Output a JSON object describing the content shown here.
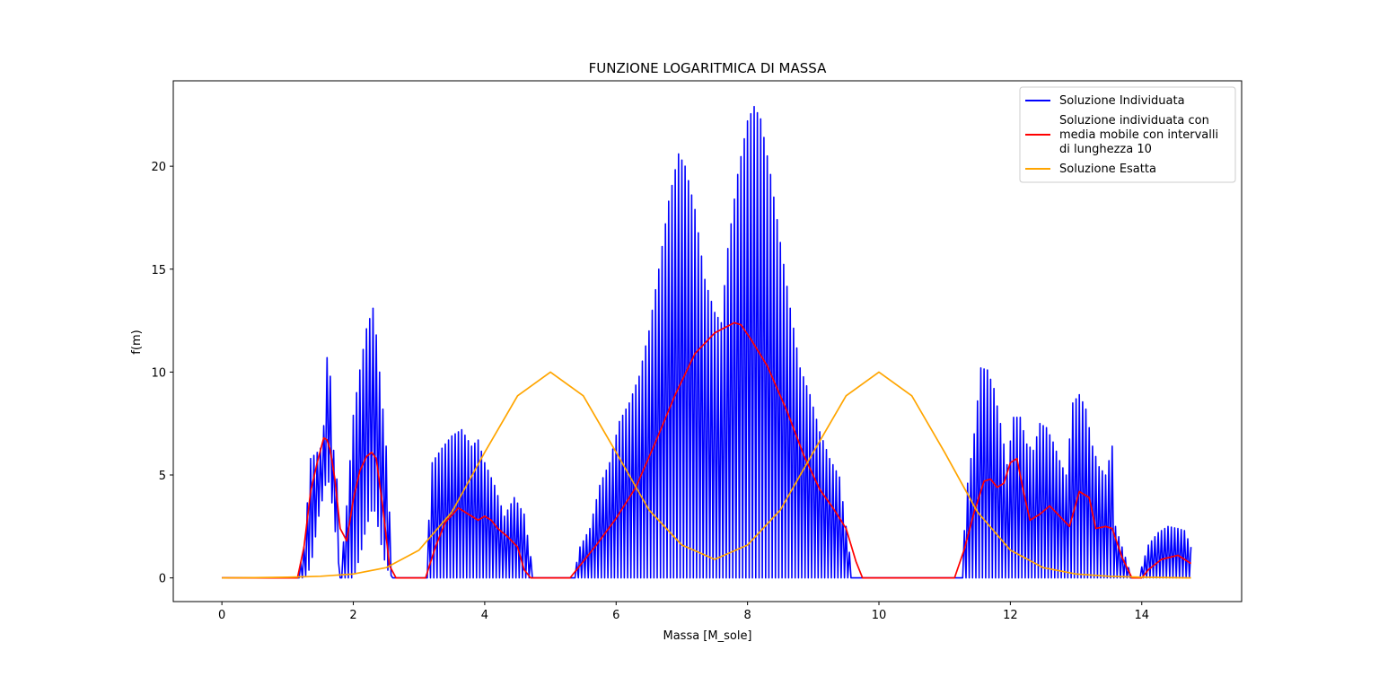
{
  "chart_data": {
    "type": "line",
    "title": "FUNZIONE LOGARITMICA DI MASSA",
    "xlabel": "Massa [M_sole]",
    "ylabel": "f(m)",
    "xlim": [
      -0.74,
      15.52
    ],
    "ylim": [
      -1.15,
      24.15
    ],
    "xticks": [
      0,
      2,
      4,
      6,
      8,
      10,
      12,
      14
    ],
    "yticks": [
      0,
      5,
      10,
      15,
      20
    ],
    "grid": false,
    "legend": "top-right",
    "series": [
      {
        "name": "Soluzione Individuata",
        "color": "#0000ff",
        "style": "oscillating",
        "x_range": [
          0,
          14.75
        ],
        "envelope": {
          "x": [
            0,
            1.15,
            1.25,
            1.35,
            1.45,
            1.5,
            1.55,
            1.6,
            1.65,
            1.7,
            1.75,
            1.8,
            1.9,
            2.0,
            2.1,
            2.2,
            2.3,
            2.35,
            2.4,
            2.5,
            2.6,
            3.1,
            3.2,
            3.35,
            3.5,
            3.65,
            3.8,
            3.9,
            4.0,
            4.15,
            4.3,
            4.45,
            4.6,
            4.75,
            5.35,
            5.45,
            5.6,
            5.75,
            5.9,
            6.05,
            6.2,
            6.35,
            6.5,
            6.65,
            6.8,
            6.95,
            7.05,
            7.2,
            7.35,
            7.5,
            7.6,
            7.7,
            7.85,
            8.0,
            8.1,
            8.2,
            8.35,
            8.5,
            8.65,
            8.8,
            8.95,
            9.1,
            9.25,
            9.4,
            9.5,
            9.6,
            11.25,
            11.35,
            11.45,
            11.55,
            11.65,
            11.75,
            11.85,
            11.95,
            12.05,
            12.15,
            12.25,
            12.35,
            12.45,
            12.55,
            12.65,
            12.75,
            12.85,
            12.95,
            13.05,
            13.15,
            13.25,
            13.35,
            13.45,
            13.55,
            13.6,
            13.85,
            13.95,
            14.1,
            14.25,
            14.4,
            14.55,
            14.65,
            14.75
          ],
          "y": [
            0,
            0,
            1.5,
            5.8,
            6.1,
            6.3,
            7.4,
            10.7,
            9.8,
            6.2,
            4.8,
            0,
            3.5,
            7.9,
            10.1,
            12.1,
            13.1,
            11.8,
            10.0,
            6.4,
            0,
            0,
            5.6,
            6.3,
            6.9,
            7.2,
            6.4,
            6.7,
            5.6,
            4.5,
            3.0,
            3.9,
            3.1,
            0,
            0,
            1.5,
            2.4,
            4.5,
            5.6,
            7.6,
            8.5,
            9.8,
            12.0,
            15.0,
            18.3,
            20.6,
            20.0,
            17.9,
            14.5,
            12.9,
            12.4,
            16.0,
            19.6,
            22.2,
            22.9,
            22.3,
            19.6,
            16.3,
            13.1,
            10.2,
            8.9,
            7.1,
            5.8,
            4.9,
            2.5,
            0,
            0,
            4.6,
            7.0,
            10.2,
            10.1,
            9.2,
            7.5,
            5.5,
            7.8,
            7.8,
            6.5,
            6.2,
            7.5,
            7.3,
            6.6,
            5.7,
            5.0,
            8.5,
            8.9,
            8.2,
            6.4,
            5.4,
            5.0,
            6.4,
            2.5,
            0,
            0,
            1.6,
            2.2,
            2.5,
            2.4,
            2.3,
            1.5
          ],
          "floor": [
            0,
            0,
            0,
            0.5,
            2.5,
            3.5,
            4.0,
            5.0,
            4.3,
            3.0,
            1.5,
            0,
            0,
            0,
            1.0,
            2.5,
            3.5,
            3.0,
            2.0,
            0.5,
            0,
            0,
            0,
            0,
            0,
            0,
            0,
            0,
            0,
            0,
            0,
            0,
            0,
            0,
            0,
            0,
            0,
            0,
            0,
            0,
            0,
            0,
            0,
            0,
            0,
            0,
            0,
            0,
            0,
            0,
            0,
            0,
            0,
            0,
            0,
            0,
            0,
            0,
            0,
            0,
            0,
            0,
            0,
            0,
            0,
            0,
            0,
            0,
            0,
            0,
            0,
            0,
            0,
            0,
            0,
            0,
            0,
            0,
            0,
            0,
            0,
            0,
            0,
            0,
            0,
            0,
            0,
            0,
            0,
            0,
            0,
            0,
            0,
            0,
            0,
            0,
            0,
            0,
            0
          ]
        }
      },
      {
        "name": "Soluzione individuata con\nmedia mobile con intervalli\ndi lunghezza 10",
        "color": "#ff0000",
        "x": [
          0,
          1.15,
          1.25,
          1.35,
          1.45,
          1.55,
          1.6,
          1.65,
          1.72,
          1.8,
          1.9,
          2.0,
          2.1,
          2.2,
          2.28,
          2.35,
          2.45,
          2.55,
          2.65,
          3.1,
          3.25,
          3.4,
          3.6,
          3.75,
          3.9,
          4.0,
          4.1,
          4.2,
          4.35,
          4.5,
          4.6,
          4.7,
          5.3,
          5.45,
          5.7,
          6.0,
          6.3,
          6.6,
          6.9,
          7.2,
          7.5,
          7.8,
          7.9,
          8.05,
          8.3,
          8.6,
          8.85,
          9.1,
          9.3,
          9.5,
          9.65,
          9.75,
          11.15,
          11.3,
          11.45,
          11.6,
          11.7,
          11.8,
          11.9,
          12.0,
          12.1,
          12.2,
          12.3,
          12.45,
          12.6,
          12.75,
          12.9,
          13.05,
          13.2,
          13.3,
          13.45,
          13.55,
          13.7,
          13.85,
          14.0,
          14.1,
          14.3,
          14.55,
          14.75
        ],
        "y": [
          0,
          0,
          1.5,
          4.2,
          5.6,
          6.8,
          6.7,
          6.2,
          4.8,
          2.4,
          1.8,
          3.8,
          5.2,
          5.9,
          6.1,
          5.8,
          3.4,
          0.6,
          0,
          0,
          1.5,
          2.7,
          3.4,
          3.1,
          2.8,
          3.0,
          2.8,
          2.4,
          2.0,
          1.5,
          0.4,
          0,
          0,
          0.6,
          1.6,
          2.9,
          4.4,
          6.6,
          8.9,
          10.9,
          11.9,
          12.4,
          12.3,
          11.6,
          10.3,
          8.1,
          6.0,
          4.3,
          3.4,
          2.4,
          0.8,
          0,
          0,
          1.4,
          3.2,
          4.7,
          4.8,
          4.4,
          4.6,
          5.6,
          5.8,
          4.2,
          2.8,
          3.1,
          3.5,
          3.0,
          2.5,
          4.2,
          3.9,
          2.4,
          2.5,
          2.4,
          1.0,
          0,
          0,
          0.4,
          0.9,
          1.1,
          0.7
        ]
      },
      {
        "name": "Soluzione Esatta",
        "color": "#ffa500",
        "x": [
          0,
          0.5,
          1.0,
          1.5,
          2.0,
          2.5,
          3.0,
          3.5,
          4.0,
          4.5,
          5.0,
          5.5,
          6.0,
          6.5,
          7.0,
          7.5,
          8.0,
          8.5,
          9.0,
          9.5,
          10.0,
          10.5,
          11.0,
          11.5,
          12.0,
          12.5,
          13.0,
          13.5,
          14.0,
          14.5,
          14.75
        ],
        "y": [
          0.0,
          0.01,
          0.03,
          0.08,
          0.19,
          0.5,
          1.35,
          3.2,
          6.1,
          8.85,
          10.0,
          8.85,
          6.1,
          3.3,
          1.6,
          0.9,
          1.6,
          3.3,
          6.1,
          8.85,
          10.0,
          8.85,
          6.1,
          3.2,
          1.35,
          0.5,
          0.19,
          0.08,
          0.03,
          0.01,
          0.0
        ]
      }
    ]
  }
}
